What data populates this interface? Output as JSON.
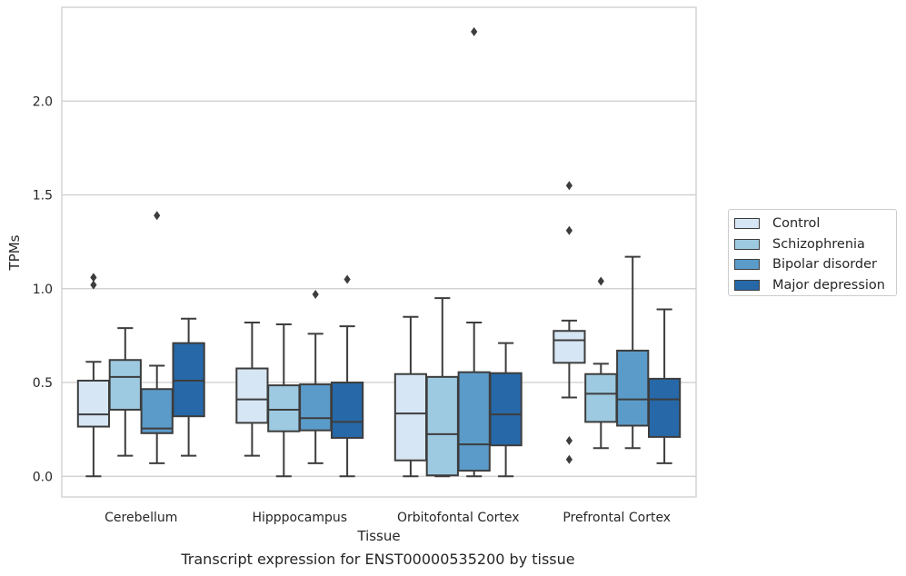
{
  "chart_data": {
    "type": "boxplot",
    "caption": "Transcript expression for ENST00000535200 by tissue",
    "xlabel": "Tissue",
    "ylabel": "TPMs",
    "ylim": [
      -0.11,
      2.5
    ],
    "yticks": [
      "0.0",
      "0.5",
      "1.0",
      "1.5",
      "2.0"
    ],
    "grid": "horizontal",
    "legend_position": "right",
    "categories": [
      "Cerebellum",
      "Hipppocampus",
      "Orbitofontal Cortex",
      "Prefrontal Cortex"
    ],
    "series": [
      {
        "name": "Control",
        "color": "#d6e6f4",
        "boxes": [
          {
            "whislo": 0.0,
            "q1": 0.265,
            "med": 0.33,
            "q3": 0.51,
            "whishi": 0.61,
            "fliers": [
              1.02,
              1.06
            ]
          },
          {
            "whislo": 0.11,
            "q1": 0.285,
            "med": 0.41,
            "q3": 0.575,
            "whishi": 0.82,
            "fliers": []
          },
          {
            "whislo": 0.0,
            "q1": 0.085,
            "med": 0.335,
            "q3": 0.545,
            "whishi": 0.85,
            "fliers": []
          },
          {
            "whislo": 0.42,
            "q1": 0.605,
            "med": 0.725,
            "q3": 0.775,
            "whishi": 0.83,
            "fliers": [
              0.09,
              0.19,
              1.31,
              1.55
            ]
          }
        ]
      },
      {
        "name": "Schizophrenia",
        "color": "#9ecae1",
        "boxes": [
          {
            "whislo": 0.11,
            "q1": 0.355,
            "med": 0.53,
            "q3": 0.62,
            "whishi": 0.79,
            "fliers": []
          },
          {
            "whislo": 0.0,
            "q1": 0.24,
            "med": 0.355,
            "q3": 0.485,
            "whishi": 0.81,
            "fliers": []
          },
          {
            "whislo": 0.0,
            "q1": 0.005,
            "med": 0.225,
            "q3": 0.53,
            "whishi": 0.95,
            "fliers": []
          },
          {
            "whislo": 0.15,
            "q1": 0.29,
            "med": 0.44,
            "q3": 0.545,
            "whishi": 0.6,
            "fliers": [
              1.04
            ]
          }
        ]
      },
      {
        "name": "Bipolar disorder",
        "color": "#5b9bc9",
        "boxes": [
          {
            "whislo": 0.07,
            "q1": 0.23,
            "med": 0.255,
            "q3": 0.465,
            "whishi": 0.59,
            "fliers": [
              1.39
            ]
          },
          {
            "whislo": 0.07,
            "q1": 0.245,
            "med": 0.31,
            "q3": 0.49,
            "whishi": 0.76,
            "fliers": [
              0.97
            ]
          },
          {
            "whislo": 0.0,
            "q1": 0.03,
            "med": 0.17,
            "q3": 0.555,
            "whishi": 0.82,
            "fliers": [
              2.37
            ]
          },
          {
            "whislo": 0.15,
            "q1": 0.27,
            "med": 0.41,
            "q3": 0.67,
            "whishi": 1.17,
            "fliers": []
          }
        ]
      },
      {
        "name": "Major depression",
        "color": "#2668a8",
        "boxes": [
          {
            "whislo": 0.11,
            "q1": 0.32,
            "med": 0.51,
            "q3": 0.71,
            "whishi": 0.84,
            "fliers": []
          },
          {
            "whislo": 0.0,
            "q1": 0.205,
            "med": 0.29,
            "q3": 0.5,
            "whishi": 0.8,
            "fliers": [
              1.05
            ]
          },
          {
            "whislo": 0.0,
            "q1": 0.165,
            "med": 0.33,
            "q3": 0.55,
            "whishi": 0.71,
            "fliers": []
          },
          {
            "whislo": 0.07,
            "q1": 0.21,
            "med": 0.41,
            "q3": 0.52,
            "whishi": 0.89,
            "fliers": []
          }
        ]
      }
    ]
  }
}
